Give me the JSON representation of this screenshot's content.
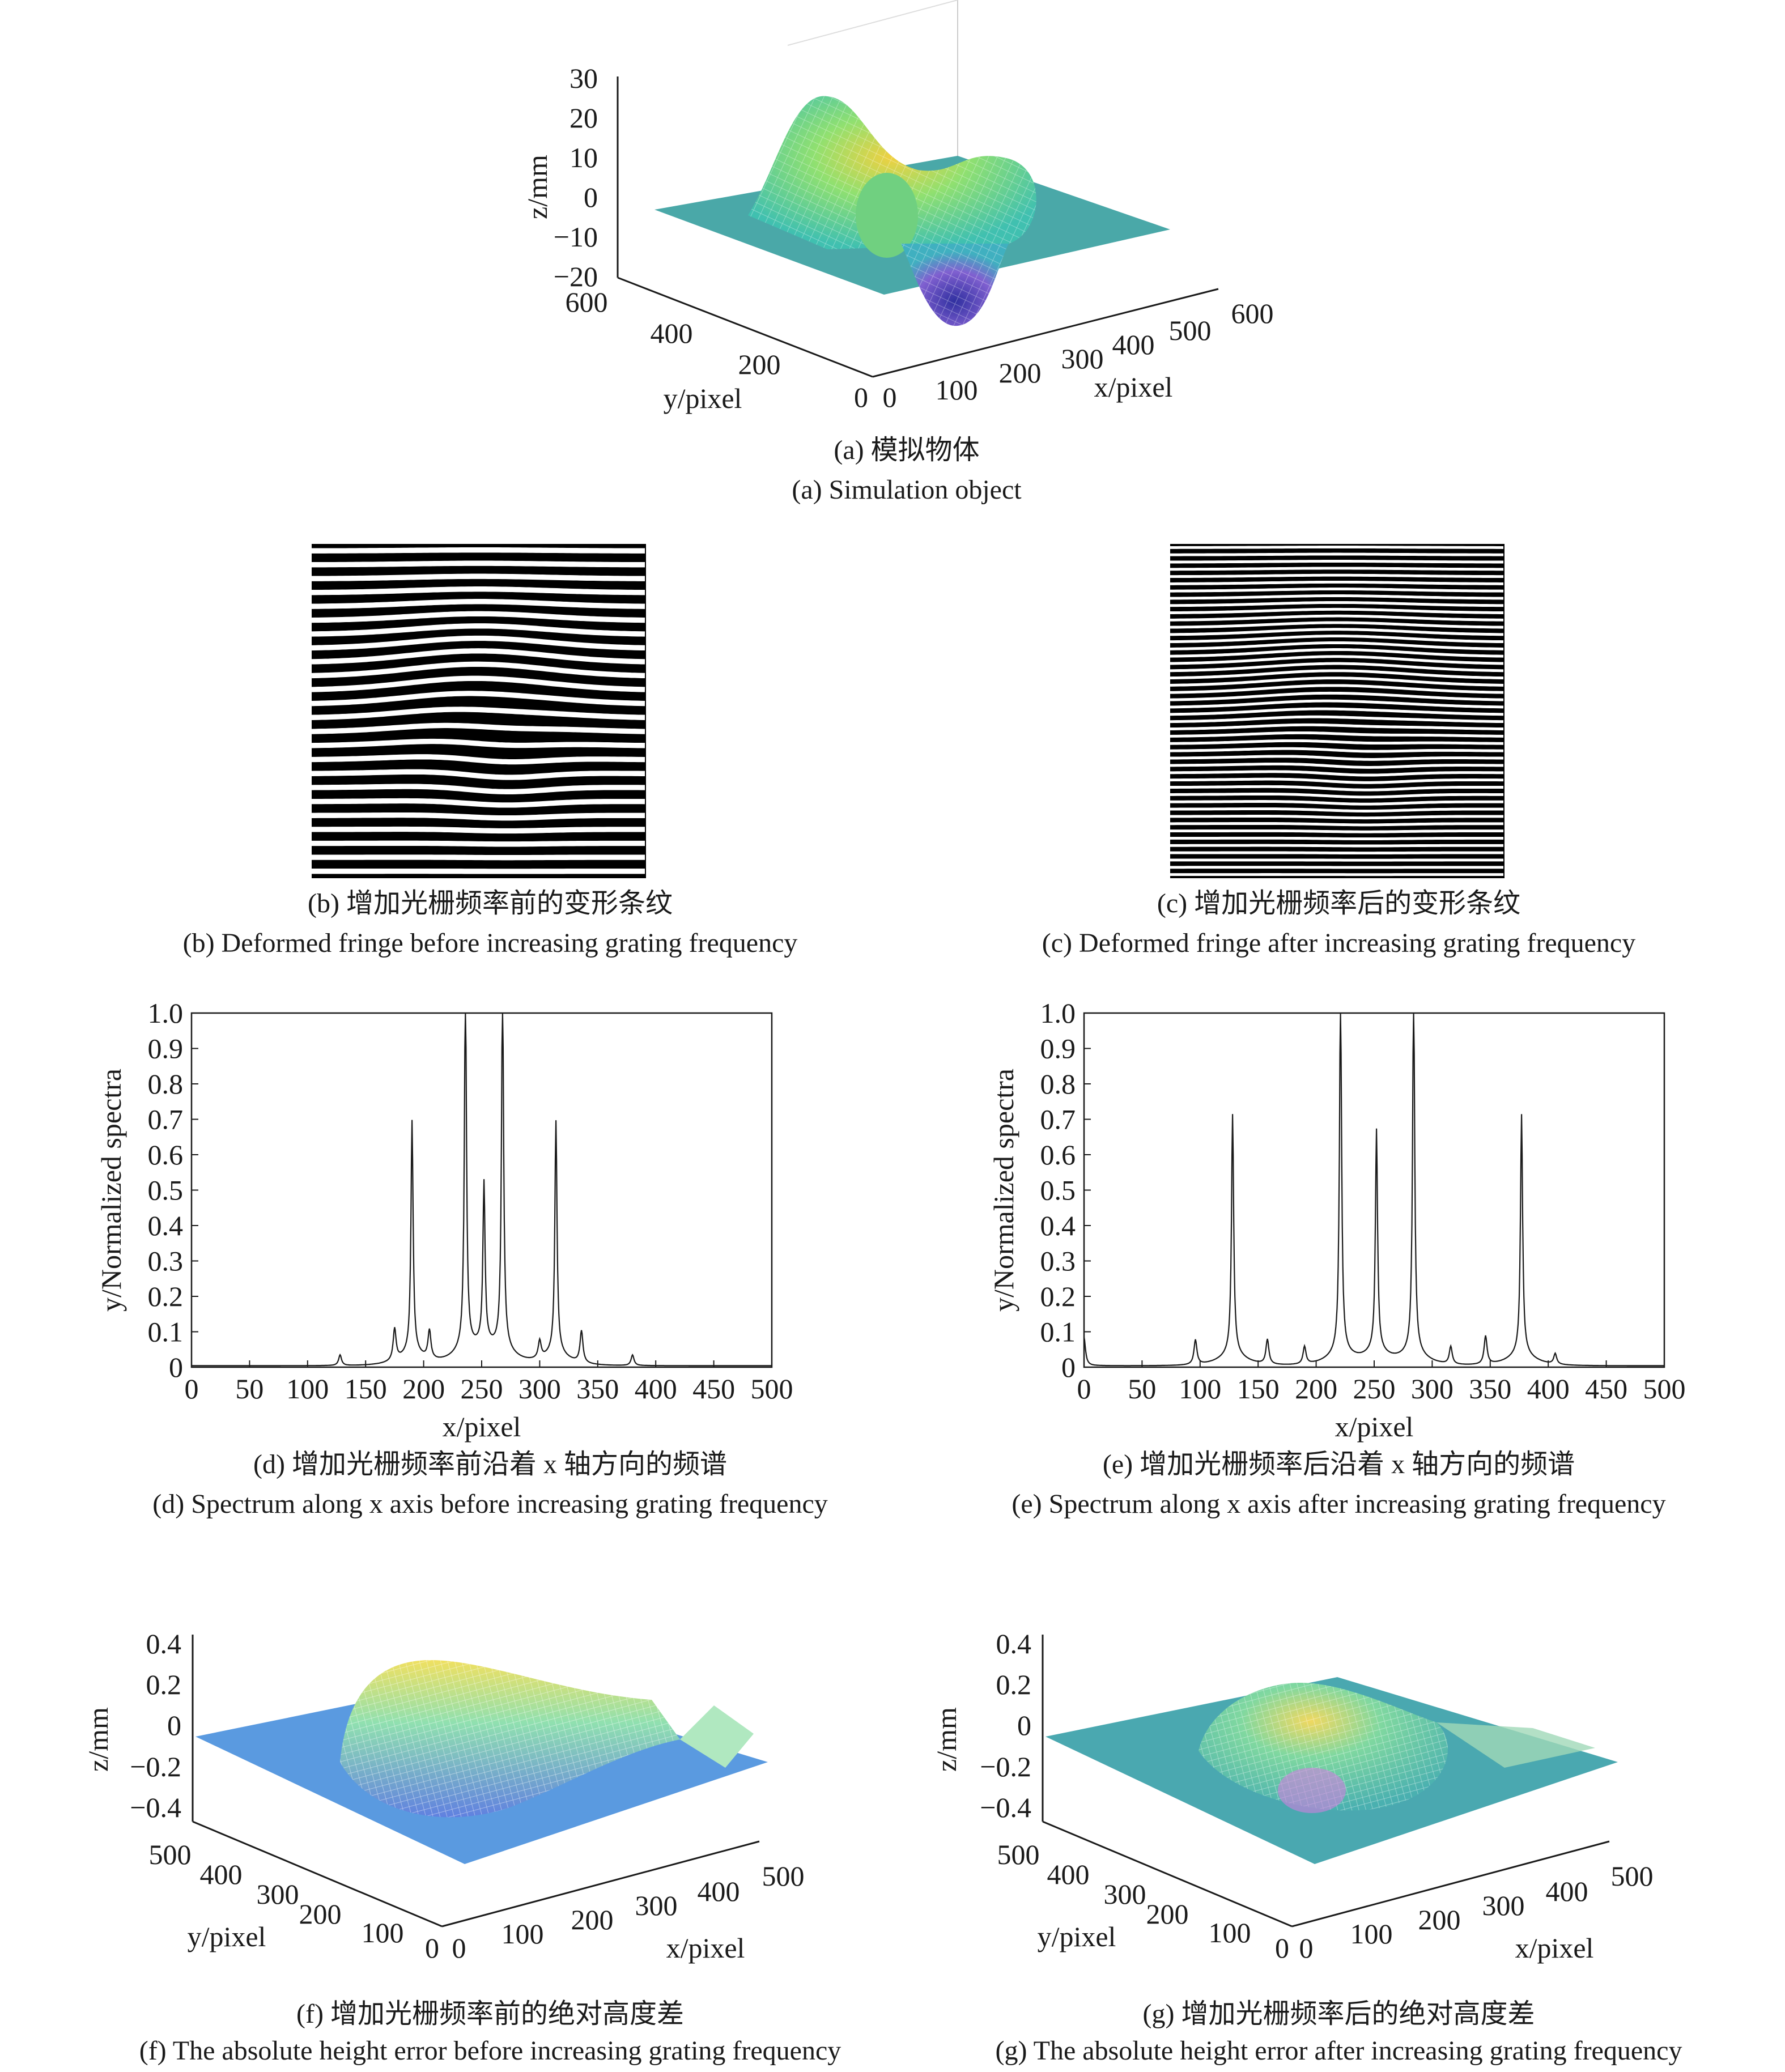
{
  "colors": {
    "surface_low": "#3a3a9a",
    "surface_mid": "#40c0b0",
    "surface_high": "#f0d040",
    "plane": "#4aa8a8",
    "error_plane": "#5a9ae0",
    "axis": "#1a1a1a"
  },
  "panel_a": {
    "caption_cn": "(a) 模拟物体",
    "caption_en": "(a) Simulation object",
    "zlabel": "z/mm",
    "xlabel": "x/pixel",
    "ylabel": "y/pixel",
    "z_ticks": [
      "30",
      "20",
      "10",
      "0",
      "−10",
      "−20"
    ],
    "x_ticks": [
      "0",
      "100",
      "200",
      "300",
      "400",
      "500",
      "600"
    ],
    "y_ticks": [
      "600",
      "400",
      "200",
      "0"
    ]
  },
  "panel_b": {
    "caption_cn": "(b) 增加光栅频率前的变形条纹",
    "caption_en": "(b) Deformed fringe before increasing grating frequency",
    "fringe_count": 24
  },
  "panel_c": {
    "caption_cn": "(c) 增加光栅频率后的变形条纹",
    "caption_en": "(c) Deformed fringe after increasing grating frequency",
    "fringe_count": 46
  },
  "panel_d": {
    "caption_cn": "(d) 增加光栅频率前沿着 x 轴方向的频谱",
    "caption_en": "(d) Spectrum along x axis before increasing grating frequency",
    "chart_data": {
      "type": "line",
      "xlabel": "x/pixel",
      "ylabel": "y/Normalized spectra",
      "xlim": [
        0,
        500
      ],
      "ylim": [
        0,
        1.0
      ],
      "x_ticks": [
        0,
        50,
        100,
        150,
        200,
        250,
        300,
        350,
        400,
        450,
        500
      ],
      "y_ticks": [
        0,
        0.1,
        0.2,
        0.3,
        0.4,
        0.5,
        0.6,
        0.7,
        0.8,
        0.9,
        1.0
      ],
      "peaks": [
        {
          "x": 190,
          "y": 0.64
        },
        {
          "x": 236,
          "y": 1.0
        },
        {
          "x": 252,
          "y": 0.44
        },
        {
          "x": 268,
          "y": 1.0
        },
        {
          "x": 314,
          "y": 0.64
        },
        {
          "x": 128,
          "y": 0.03
        },
        {
          "x": 205,
          "y": 0.08
        },
        {
          "x": 175,
          "y": 0.09
        },
        {
          "x": 300,
          "y": 0.05
        },
        {
          "x": 336,
          "y": 0.09
        },
        {
          "x": 380,
          "y": 0.03
        }
      ]
    }
  },
  "panel_e": {
    "caption_cn": "(e) 增加光栅频率后沿着 x 轴方向的频谱",
    "caption_en": "(e) Spectrum along x axis after increasing grating frequency",
    "chart_data": {
      "type": "line",
      "xlabel": "x/pixel",
      "ylabel": "y/Normalized spectra",
      "xlim": [
        0,
        500
      ],
      "ylim": [
        0,
        1.0
      ],
      "x_ticks": [
        0,
        50,
        100,
        150,
        200,
        250,
        300,
        350,
        400,
        450,
        500
      ],
      "y_ticks": [
        0,
        0.1,
        0.2,
        0.3,
        0.4,
        0.5,
        0.6,
        0.7,
        0.8,
        0.9,
        1.0
      ],
      "peaks": [
        {
          "x": 128,
          "y": 0.66
        },
        {
          "x": 221,
          "y": 1.0
        },
        {
          "x": 252,
          "y": 0.61
        },
        {
          "x": 284,
          "y": 1.0
        },
        {
          "x": 377,
          "y": 0.66
        },
        {
          "x": 0,
          "y": 0.08
        },
        {
          "x": 96,
          "y": 0.07
        },
        {
          "x": 158,
          "y": 0.07
        },
        {
          "x": 190,
          "y": 0.05
        },
        {
          "x": 316,
          "y": 0.05
        },
        {
          "x": 346,
          "y": 0.08
        },
        {
          "x": 406,
          "y": 0.03
        }
      ]
    }
  },
  "panel_f": {
    "caption_cn": "(f) 增加光栅频率前的绝对高度差",
    "caption_en": "(f) The absolute height error before increasing grating frequency",
    "zlabel": "z/mm",
    "xlabel": "x/pixel",
    "ylabel": "y/pixel",
    "z_ticks": [
      "0.4",
      "0.2",
      "0",
      "−0.2",
      "−0.4"
    ],
    "x_ticks": [
      "0",
      "100",
      "200",
      "300",
      "400",
      "500"
    ],
    "y_ticks": [
      "500",
      "400",
      "300",
      "200",
      "100",
      "0"
    ]
  },
  "panel_g": {
    "caption_cn": "(g) 增加光栅频率后的绝对高度差",
    "caption_en": "(g) The absolute height error after increasing grating frequency",
    "zlabel": "z/mm",
    "xlabel": "x/pixel",
    "ylabel": "y/pixel",
    "z_ticks": [
      "0.4",
      "0.2",
      "0",
      "−0.2",
      "−0.4"
    ],
    "x_ticks": [
      "0",
      "100",
      "200",
      "300",
      "400",
      "500"
    ],
    "y_ticks": [
      "500",
      "400",
      "300",
      "200",
      "100",
      "0"
    ]
  }
}
